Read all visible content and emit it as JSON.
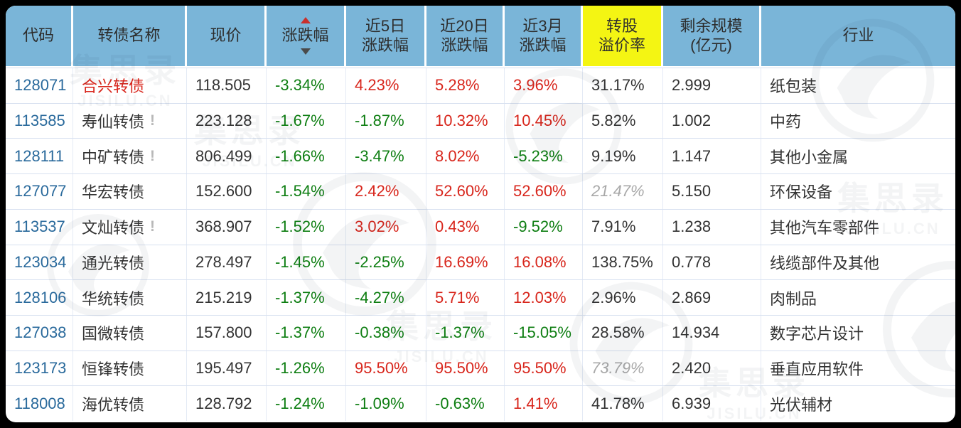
{
  "colors": {
    "header_bg": "#7ab5d8",
    "highlight_bg": "#f4f513",
    "link_blue": "#2a6a9c",
    "up_red": "#d8261c",
    "down_green": "#0e7e12",
    "text_dark": "#333333",
    "muted_gray": "#a8a8a8",
    "sort_up_red": "#c9302c",
    "sort_down_gray": "#4a4a4a",
    "row_divider": "#d8e1f0"
  },
  "icons": {
    "sort_ascending": "red-up-triangle",
    "sort_descending": "gray-down-triangle",
    "warning_mark": "!"
  },
  "watermark": {
    "cn": "集思录",
    "en": "JISILU.CN"
  },
  "table": {
    "columns": [
      {
        "key": "code",
        "lines": [
          "代码"
        ]
      },
      {
        "key": "name",
        "lines": [
          "转债名称"
        ]
      },
      {
        "key": "price",
        "lines": [
          "现价"
        ]
      },
      {
        "key": "chg",
        "lines": [
          "涨跌幅"
        ],
        "sortable": true
      },
      {
        "key": "chg5",
        "lines": [
          "近5日",
          "涨跌幅"
        ]
      },
      {
        "key": "chg20",
        "lines": [
          "近20日",
          "涨跌幅"
        ]
      },
      {
        "key": "chg3m",
        "lines": [
          "近3月",
          "涨跌幅"
        ]
      },
      {
        "key": "premium",
        "lines": [
          "转股",
          "溢价率"
        ],
        "highlight": true
      },
      {
        "key": "size",
        "lines": [
          "剩余规模",
          "(亿元)"
        ]
      },
      {
        "key": "industry",
        "lines": [
          "行业"
        ]
      }
    ],
    "rows": [
      {
        "code": "128071",
        "name": "合兴转债",
        "alert": true,
        "warn": false,
        "price": "118.505",
        "chg": "-3.34%",
        "chg5": "4.23%",
        "chg20": "5.28%",
        "chg3m": "3.96%",
        "premium": "31.17%",
        "premium_muted": false,
        "size": "2.999",
        "industry": "纸包装"
      },
      {
        "code": "113585",
        "name": "寿仙转债",
        "alert": false,
        "warn": true,
        "price": "223.128",
        "chg": "-1.67%",
        "chg5": "-1.87%",
        "chg20": "10.32%",
        "chg3m": "10.45%",
        "premium": "5.82%",
        "premium_muted": false,
        "size": "1.002",
        "industry": "中药"
      },
      {
        "code": "128111",
        "name": "中矿转债",
        "alert": false,
        "warn": true,
        "price": "806.499",
        "chg": "-1.66%",
        "chg5": "-3.47%",
        "chg20": "8.02%",
        "chg3m": "-5.23%",
        "premium": "9.19%",
        "premium_muted": false,
        "size": "1.147",
        "industry": "其他小金属"
      },
      {
        "code": "127077",
        "name": "华宏转债",
        "alert": false,
        "warn": false,
        "price": "152.600",
        "chg": "-1.54%",
        "chg5": "2.42%",
        "chg20": "52.60%",
        "chg3m": "52.60%",
        "premium": "21.47%",
        "premium_muted": true,
        "size": "5.150",
        "industry": "环保设备"
      },
      {
        "code": "113537",
        "name": "文灿转债",
        "alert": false,
        "warn": true,
        "price": "368.907",
        "chg": "-1.52%",
        "chg5": "3.02%",
        "chg20": "0.43%",
        "chg3m": "-9.52%",
        "premium": "7.91%",
        "premium_muted": false,
        "size": "1.238",
        "industry": "其他汽车零部件"
      },
      {
        "code": "123034",
        "name": "通光转债",
        "alert": false,
        "warn": false,
        "price": "278.497",
        "chg": "-1.45%",
        "chg5": "-2.25%",
        "chg20": "16.69%",
        "chg3m": "16.08%",
        "premium": "138.75%",
        "premium_muted": false,
        "size": "0.778",
        "industry": "线缆部件及其他"
      },
      {
        "code": "128106",
        "name": "华统转债",
        "alert": false,
        "warn": false,
        "price": "215.219",
        "chg": "-1.37%",
        "chg5": "-4.27%",
        "chg20": "5.71%",
        "chg3m": "12.03%",
        "premium": "2.96%",
        "premium_muted": false,
        "size": "2.869",
        "industry": "肉制品"
      },
      {
        "code": "127038",
        "name": "国微转债",
        "alert": false,
        "warn": false,
        "price": "157.800",
        "chg": "-1.37%",
        "chg5": "-0.38%",
        "chg20": "-1.37%",
        "chg3m": "-15.05%",
        "premium": "28.58%",
        "premium_muted": false,
        "size": "14.934",
        "industry": "数字芯片设计"
      },
      {
        "code": "123173",
        "name": "恒锋转债",
        "alert": false,
        "warn": false,
        "price": "195.497",
        "chg": "-1.26%",
        "chg5": "95.50%",
        "chg20": "95.50%",
        "chg3m": "95.50%",
        "premium": "73.79%",
        "premium_muted": true,
        "size": "2.420",
        "industry": "垂直应用软件"
      },
      {
        "code": "118008",
        "name": "海优转债",
        "alert": false,
        "warn": false,
        "price": "128.792",
        "chg": "-1.24%",
        "chg5": "-1.09%",
        "chg20": "-0.63%",
        "chg3m": "1.41%",
        "premium": "41.78%",
        "premium_muted": false,
        "size": "6.939",
        "industry": "光伏辅材"
      }
    ]
  }
}
